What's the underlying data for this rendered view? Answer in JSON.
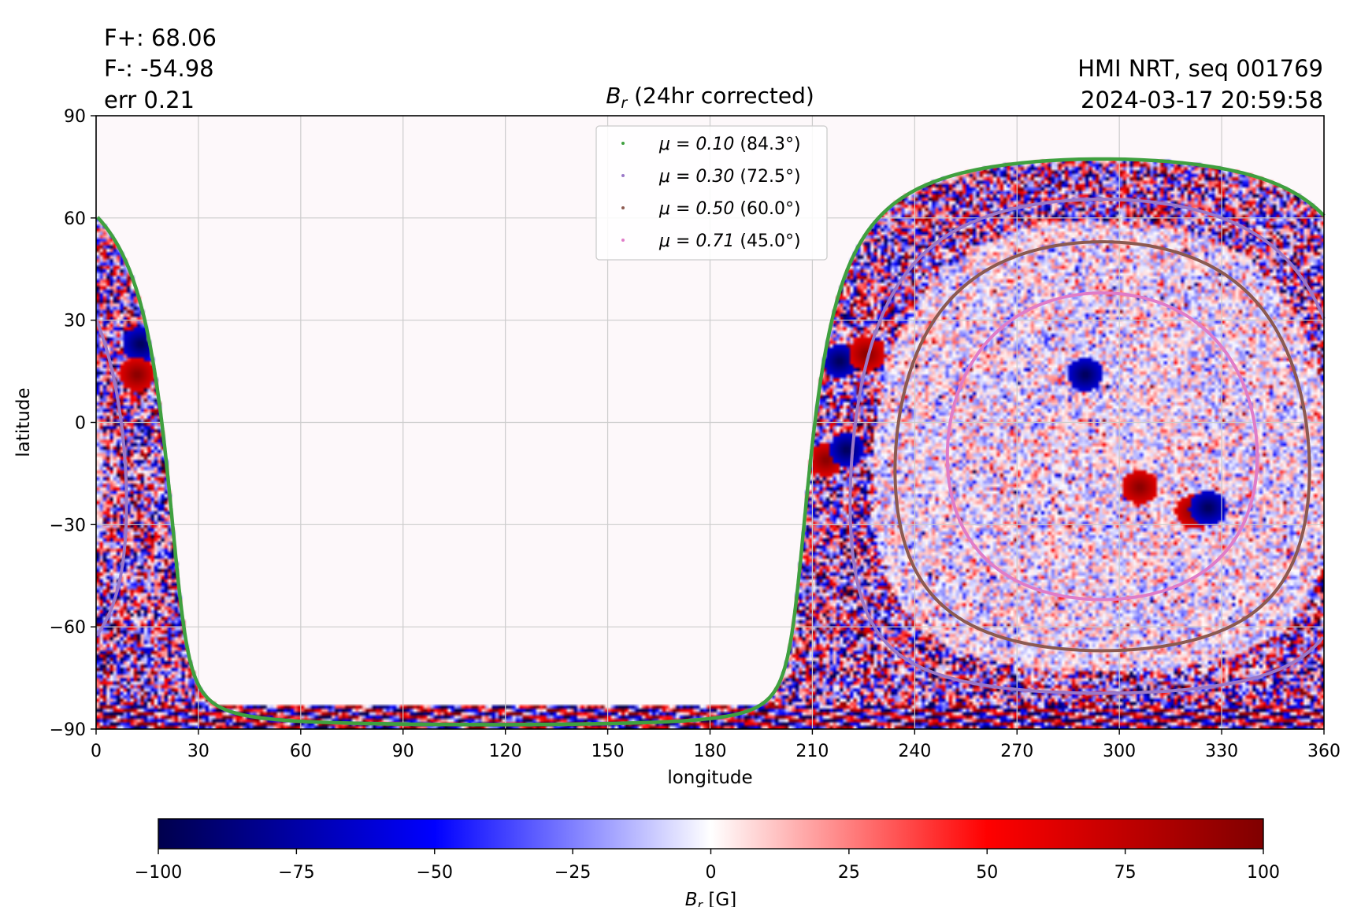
{
  "annotations": {
    "flux_plus": "F+: 68.06",
    "flux_minus": "F-: -54.98",
    "error": "err 0.21",
    "instrument": "HMI NRT, seq 001769",
    "timestamp": "2024-03-17 20:59:58"
  },
  "colors": {
    "mu_010": "#3fa03f",
    "mu_030": "#9a78c8",
    "mu_050": "#8c5a50",
    "mu_071": "#e07cc8",
    "background": "#fdf8fa",
    "grid": "#cccccc"
  },
  "chart_data": [
    {
      "type": "heatmap",
      "title": "B_r (24hr corrected)",
      "title_main": "B",
      "title_sub": "r",
      "title_rest": " (24hr corrected)",
      "xlabel": "longitude",
      "ylabel": "latitude",
      "xlim": [
        0,
        360
      ],
      "ylim": [
        -90,
        90
      ],
      "xticks": [
        0,
        30,
        60,
        90,
        120,
        150,
        180,
        210,
        240,
        270,
        300,
        330,
        360
      ],
      "xtick_labels": [
        "0",
        "30",
        "60",
        "90",
        "120",
        "150",
        "180",
        "210",
        "240",
        "270",
        "300",
        "330",
        "360"
      ],
      "yticks": [
        90,
        60,
        30,
        0,
        -30,
        -60,
        -90
      ],
      "ytick_labels": [
        "90",
        "60",
        "30",
        "0",
        "−30",
        "−60",
        "−90"
      ],
      "grid": true,
      "colormap": "seismic",
      "color_range": [
        -100,
        100
      ],
      "legend_position": "top-center",
      "disk_center": {
        "longitude": 295,
        "latitude": -7
      },
      "series": [
        {
          "name": "μ = 0.10 (84.3°)",
          "label_pre": "μ = 0.10 ",
          "label_post": "(84.3°)",
          "angle_deg": 84.3,
          "color_key": "mu_010"
        },
        {
          "name": "μ = 0.30 (72.5°)",
          "label_pre": "μ = 0.30 ",
          "label_post": "(72.5°)",
          "angle_deg": 72.5,
          "color_key": "mu_030"
        },
        {
          "name": "μ = 0.50 (60.0°)",
          "label_pre": "μ = 0.50 ",
          "label_post": "(60.0°)",
          "angle_deg": 60.0,
          "color_key": "mu_050"
        },
        {
          "name": "μ = 0.71 (45.0°)",
          "label_pre": "μ = 0.71 ",
          "label_post": "(45.0°)",
          "angle_deg": 45.0,
          "color_key": "mu_071"
        }
      ],
      "active_regions": [
        {
          "longitude": 218,
          "latitude": 18,
          "polarity": "negative"
        },
        {
          "longitude": 226,
          "latitude": 20,
          "polarity": "positive"
        },
        {
          "longitude": 214,
          "latitude": -11,
          "polarity": "positive"
        },
        {
          "longitude": 220,
          "latitude": -8,
          "polarity": "negative"
        },
        {
          "longitude": 13,
          "latitude": 23,
          "polarity": "negative"
        },
        {
          "longitude": 12,
          "latitude": 14,
          "polarity": "positive"
        },
        {
          "longitude": 322,
          "latitude": -26,
          "polarity": "positive"
        },
        {
          "longitude": 326,
          "latitude": -25,
          "polarity": "negative"
        },
        {
          "longitude": 290,
          "latitude": 14,
          "polarity": "negative"
        },
        {
          "longitude": 306,
          "latitude": -19,
          "polarity": "positive"
        }
      ]
    },
    {
      "type": "colorbar",
      "label": "B_r [G]",
      "label_main": "B",
      "label_sub": "r",
      "label_rest": " [G]",
      "range": [
        -100,
        100
      ],
      "ticks": [
        -100,
        -75,
        -50,
        -25,
        0,
        25,
        50,
        75,
        100
      ],
      "tick_labels": [
        "−100",
        "−75",
        "−50",
        "−25",
        "0",
        "25",
        "50",
        "75",
        "100"
      ]
    }
  ]
}
